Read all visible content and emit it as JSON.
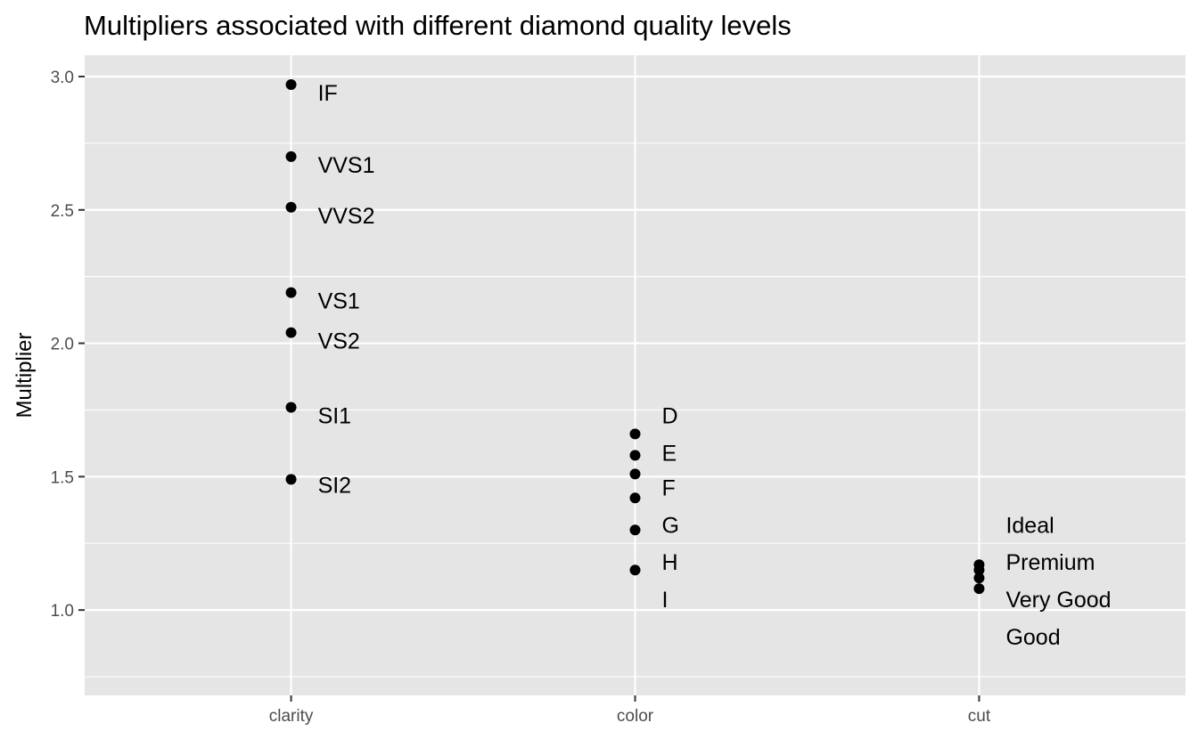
{
  "chart_data": {
    "type": "scatter",
    "title": "Multipliers associated with different diamond quality levels",
    "xlabel": "",
    "ylabel": "Multiplier",
    "categories": [
      "clarity",
      "color",
      "cut"
    ],
    "ylim": [
      0.68,
      3.08
    ],
    "yticks": [
      1.0,
      1.5,
      2.0,
      2.5,
      3.0
    ],
    "ytick_labels": [
      "1.0",
      "1.5",
      "2.0",
      "2.5",
      "3.0"
    ],
    "grid": true,
    "panel_background": "#e5e5e5",
    "grid_color": "#ffffff",
    "point_color": "#000000",
    "series": [
      {
        "category": "clarity",
        "points": [
          {
            "level": "IF",
            "value": 2.97
          },
          {
            "level": "VVS1",
            "value": 2.7
          },
          {
            "level": "VVS2",
            "value": 2.51
          },
          {
            "level": "VS1",
            "value": 2.19
          },
          {
            "level": "VS2",
            "value": 2.04
          },
          {
            "level": "SI1",
            "value": 1.76
          },
          {
            "level": "SI2",
            "value": 1.49
          }
        ],
        "labels": [
          {
            "text": "IF",
            "value": 2.94
          },
          {
            "text": "VVS1",
            "value": 2.67
          },
          {
            "text": "VVS2",
            "value": 2.48
          },
          {
            "text": "VS1",
            "value": 2.16
          },
          {
            "text": "VS2",
            "value": 2.01
          },
          {
            "text": "SI1",
            "value": 1.73
          },
          {
            "text": "SI2",
            "value": 1.47
          }
        ]
      },
      {
        "category": "color",
        "points": [
          {
            "level": "D",
            "value": 1.66
          },
          {
            "level": "E",
            "value": 1.58
          },
          {
            "level": "F",
            "value": 1.51
          },
          {
            "level": "G",
            "value": 1.42
          },
          {
            "level": "H",
            "value": 1.3
          },
          {
            "level": "I",
            "value": 1.15
          }
        ],
        "labels": [
          {
            "text": "D",
            "value": 1.73
          },
          {
            "text": "E",
            "value": 1.59
          },
          {
            "text": "F",
            "value": 1.46
          },
          {
            "text": "G",
            "value": 1.32
          },
          {
            "text": "H",
            "value": 1.18
          },
          {
            "text": "I",
            "value": 1.04
          }
        ]
      },
      {
        "category": "cut",
        "points": [
          {
            "level": "Ideal",
            "value": 1.17
          },
          {
            "level": "Premium",
            "value": 1.15
          },
          {
            "level": "Very Good",
            "value": 1.12
          },
          {
            "level": "Good",
            "value": 1.08
          }
        ],
        "labels": [
          {
            "text": "Ideal",
            "value": 1.32
          },
          {
            "text": "Premium",
            "value": 1.18
          },
          {
            "text": "Very Good",
            "value": 1.04
          },
          {
            "text": "Good",
            "value": 0.9
          }
        ]
      }
    ]
  }
}
